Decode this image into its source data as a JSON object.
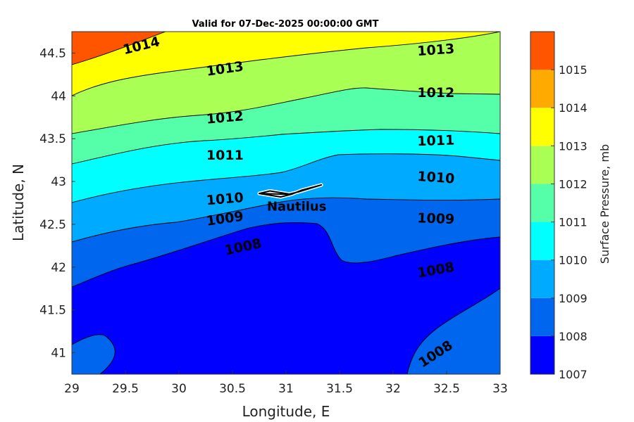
{
  "title": "Valid for 07-Dec-2025 00:00:00 GMT",
  "map": {
    "xlabel": "Longitude, E",
    "ylabel": "Latitude, N",
    "xlim": [
      29,
      33
    ],
    "ylim": [
      40.75,
      44.75
    ],
    "x_ticks": [
      "29",
      "29.5",
      "30",
      "30.5",
      "31",
      "31.5",
      "32",
      "32.5",
      "33"
    ],
    "y_ticks": [
      "41",
      "41.5",
      "42",
      "42.5",
      "43",
      "43.5",
      "44",
      "44.5"
    ]
  },
  "colorbar": {
    "label": "Surface Pressure, mb",
    "levels": [
      "1007",
      "1008",
      "1009",
      "1010",
      "1011",
      "1012",
      "1013",
      "1014",
      "1015"
    ],
    "colors": [
      "#0000ff",
      "#0066ee",
      "#00aaff",
      "#00ffff",
      "#55ffaa",
      "#aaff55",
      "#ffff00",
      "#ffaa00",
      "#ff5500"
    ]
  },
  "contour_labels": [
    {
      "text": "1014",
      "lon": 29.65,
      "lat": 44.58,
      "angle": -14
    },
    {
      "text": "1013",
      "lon": 30.43,
      "lat": 44.31,
      "angle": -8
    },
    {
      "text": "1013",
      "lon": 32.4,
      "lat": 44.53,
      "angle": -4
    },
    {
      "text": "1012",
      "lon": 30.43,
      "lat": 43.74,
      "angle": -5
    },
    {
      "text": "1012",
      "lon": 32.4,
      "lat": 44.03,
      "angle": 0
    },
    {
      "text": "1011",
      "lon": 30.43,
      "lat": 43.3,
      "angle": 0
    },
    {
      "text": "1011",
      "lon": 32.4,
      "lat": 43.47,
      "angle": -2
    },
    {
      "text": "1010",
      "lon": 30.43,
      "lat": 42.79,
      "angle": -5
    },
    {
      "text": "1010",
      "lon": 32.4,
      "lat": 43.04,
      "angle": 4
    },
    {
      "text": "1009",
      "lon": 30.43,
      "lat": 42.56,
      "angle": -8
    },
    {
      "text": "1009",
      "lon": 32.4,
      "lat": 42.56,
      "angle": 2
    },
    {
      "text": "1008",
      "lon": 30.6,
      "lat": 42.23,
      "angle": -12
    },
    {
      "text": "1008",
      "lon": 32.4,
      "lat": 41.96,
      "angle": -10
    },
    {
      "text": "1008",
      "lon": 32.4,
      "lat": 40.98,
      "angle": -33
    }
  ],
  "ship": {
    "name": "Nautilus",
    "track": [
      [
        30.75,
        42.86
      ],
      [
        30.95,
        42.82
      ],
      [
        31.05,
        42.85
      ],
      [
        30.85,
        42.89
      ],
      [
        30.75,
        42.86
      ],
      [
        31.05,
        42.85
      ],
      [
        31.15,
        42.9
      ],
      [
        31.33,
        42.96
      ],
      [
        31.12,
        42.88
      ],
      [
        31.02,
        42.85
      ]
    ]
  }
}
